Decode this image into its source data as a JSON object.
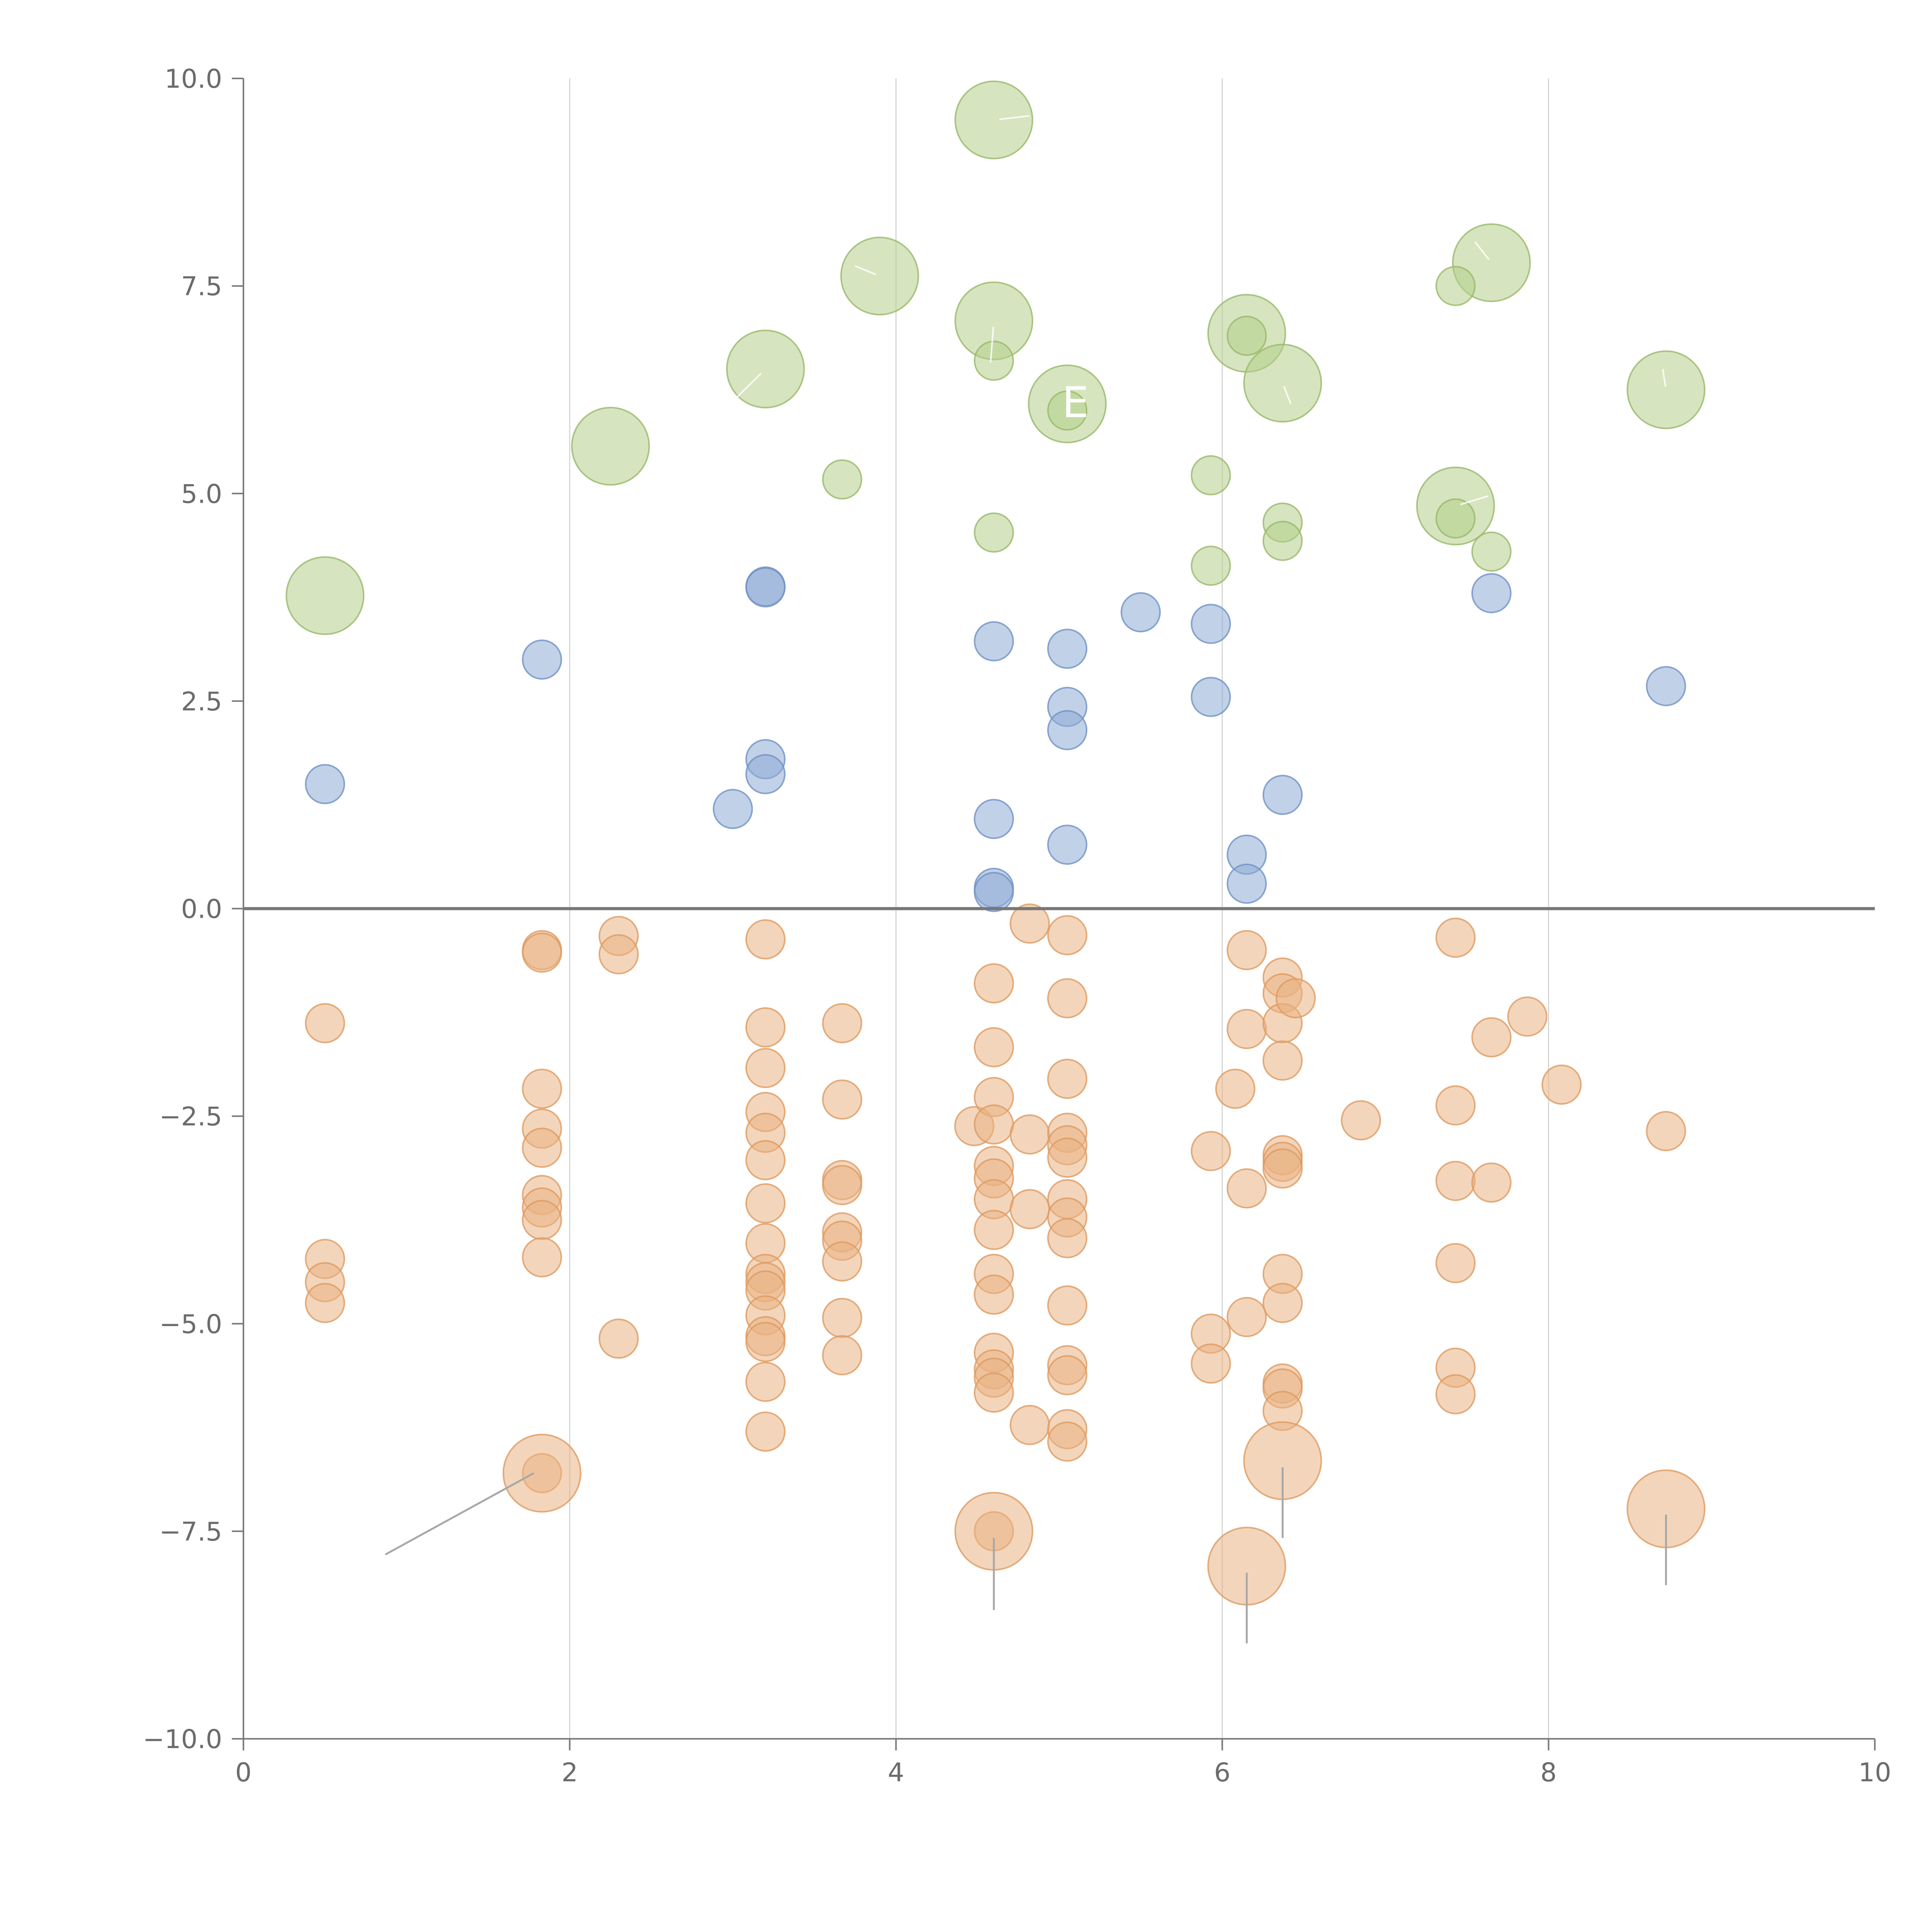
{
  "chart_data": {
    "type": "scatter",
    "title": "",
    "xlabel": "",
    "ylabel": "",
    "xlim": [
      0,
      10
    ],
    "ylim": [
      -10,
      10
    ],
    "x_ticks": [
      0,
      2,
      4,
      6,
      8,
      10
    ],
    "x_tick_labels": [
      "0",
      "2",
      "4",
      "6",
      "8",
      "10"
    ],
    "y_ticks": [
      10,
      7.5,
      5,
      2.5,
      0,
      -2.5,
      -5,
      -7.5,
      -10
    ],
    "y_tick_labels": [
      "10.0",
      "7.5",
      "5.0",
      "2.5",
      "0.0",
      "−2.5",
      "−5.0",
      "−7.5",
      "−10.0"
    ],
    "x_grid": [
      2,
      4,
      6,
      8
    ],
    "reference_line_y": 0,
    "overlay_text": [
      "E"
    ],
    "series": [
      {
        "name": "large-green",
        "color": "#b5d08a",
        "edge": "#98b86a",
        "radius_scale": 2.0,
        "points": [
          [
            0.5,
            3.77
          ],
          [
            2.25,
            5.57
          ],
          [
            3.2,
            6.5
          ],
          [
            3.9,
            7.62
          ],
          [
            4.6,
            9.5
          ],
          [
            4.6,
            7.08
          ],
          [
            5.05,
            6.08
          ],
          [
            6.15,
            6.93
          ],
          [
            6.37,
            6.33
          ],
          [
            7.43,
            4.85
          ],
          [
            7.65,
            7.78
          ],
          [
            8.72,
            6.25
          ]
        ],
        "labels": [
          {
            "index": 2,
            "dx": -0.18,
            "dy": -0.35
          },
          {
            "index": 3,
            "dx": -0.15,
            "dy": 0.12
          },
          {
            "index": 4,
            "dx": 0.22,
            "dy": 0.05
          },
          {
            "index": 5,
            "dx": -0.02,
            "dy": -0.5
          },
          {
            "index": 7,
            "dx": 0.0,
            "dy": 0.0
          },
          {
            "index": 8,
            "dx": 0.05,
            "dy": -0.25
          },
          {
            "index": 9,
            "dx": 0.2,
            "dy": 0.12
          },
          {
            "index": 10,
            "dx": -0.1,
            "dy": 0.25
          },
          {
            "index": 11,
            "dx": -0.02,
            "dy": 0.25
          }
        ]
      },
      {
        "name": "small-green",
        "color": "#b5d08a",
        "edge": "#98b86a",
        "radius_scale": 1.0,
        "points": [
          [
            3.67,
            5.17
          ],
          [
            4.6,
            6.6
          ],
          [
            4.6,
            4.53
          ],
          [
            5.05,
            6.0
          ],
          [
            5.93,
            5.22
          ],
          [
            5.93,
            4.13
          ],
          [
            6.15,
            6.9
          ],
          [
            6.37,
            4.65
          ],
          [
            6.37,
            4.43
          ],
          [
            7.43,
            7.5
          ],
          [
            7.43,
            4.7
          ],
          [
            7.65,
            4.3
          ]
        ]
      },
      {
        "name": "blue",
        "color": "#8eabd6",
        "edge": "#6f91c4",
        "radius_scale": 1.0,
        "points": [
          [
            0.5,
            1.5
          ],
          [
            1.83,
            3.0
          ],
          [
            3.0,
            1.2
          ],
          [
            3.2,
            3.88
          ],
          [
            3.2,
            3.87
          ],
          [
            3.2,
            1.8
          ],
          [
            3.2,
            1.62
          ],
          [
            4.6,
            3.22
          ],
          [
            4.6,
            1.08
          ],
          [
            4.6,
            0.25
          ],
          [
            4.6,
            0.2
          ],
          [
            5.05,
            3.13
          ],
          [
            5.05,
            2.43
          ],
          [
            5.05,
            2.15
          ],
          [
            5.05,
            0.77
          ],
          [
            5.5,
            3.57
          ],
          [
            5.93,
            3.43
          ],
          [
            5.93,
            2.55
          ],
          [
            6.15,
            0.65
          ],
          [
            6.15,
            0.3
          ],
          [
            6.37,
            1.37
          ],
          [
            7.65,
            3.8
          ],
          [
            8.72,
            2.68
          ]
        ]
      },
      {
        "name": "orange",
        "color": "#eab384",
        "edge": "#dd9a60",
        "radius_scale": 1.0,
        "points": [
          [
            0.5,
            -1.38
          ],
          [
            0.5,
            -4.22
          ],
          [
            0.5,
            -4.5
          ],
          [
            0.5,
            -4.75
          ],
          [
            1.83,
            -0.5
          ],
          [
            1.83,
            -0.53
          ],
          [
            1.83,
            -2.17
          ],
          [
            1.83,
            -2.65
          ],
          [
            1.83,
            -2.88
          ],
          [
            1.83,
            -3.45
          ],
          [
            1.83,
            -3.6
          ],
          [
            1.83,
            -3.75
          ],
          [
            1.83,
            -4.2
          ],
          [
            1.83,
            -6.8
          ],
          [
            2.3,
            -0.33
          ],
          [
            2.3,
            -0.55
          ],
          [
            2.3,
            -5.18
          ],
          [
            3.2,
            -0.37
          ],
          [
            3.2,
            -1.43
          ],
          [
            3.2,
            -1.92
          ],
          [
            3.2,
            -2.45
          ],
          [
            3.2,
            -2.7
          ],
          [
            3.2,
            -3.03
          ],
          [
            3.2,
            -3.55
          ],
          [
            3.2,
            -4.03
          ],
          [
            3.2,
            -4.4
          ],
          [
            3.2,
            -4.5
          ],
          [
            3.2,
            -4.6
          ],
          [
            3.2,
            -4.9
          ],
          [
            3.2,
            -5.15
          ],
          [
            3.2,
            -5.22
          ],
          [
            3.2,
            -5.7
          ],
          [
            3.2,
            -6.3
          ],
          [
            3.67,
            -1.38
          ],
          [
            3.67,
            -2.3
          ],
          [
            3.67,
            -3.27
          ],
          [
            3.67,
            -3.33
          ],
          [
            3.67,
            -3.9
          ],
          [
            3.67,
            -4.0
          ],
          [
            3.67,
            -4.25
          ],
          [
            3.67,
            -4.93
          ],
          [
            3.67,
            -5.38
          ],
          [
            4.48,
            -2.62
          ],
          [
            4.6,
            -0.9
          ],
          [
            4.6,
            -1.67
          ],
          [
            4.6,
            -2.27
          ],
          [
            4.6,
            -2.6
          ],
          [
            4.6,
            -3.1
          ],
          [
            4.6,
            -3.25
          ],
          [
            4.6,
            -3.5
          ],
          [
            4.6,
            -3.87
          ],
          [
            4.6,
            -4.4
          ],
          [
            4.6,
            -4.65
          ],
          [
            4.6,
            -5.35
          ],
          [
            4.6,
            -5.55
          ],
          [
            4.6,
            -5.65
          ],
          [
            4.6,
            -5.83
          ],
          [
            4.6,
            -7.5
          ],
          [
            4.82,
            -0.18
          ],
          [
            4.82,
            -2.72
          ],
          [
            4.82,
            -3.62
          ],
          [
            4.82,
            -6.22
          ],
          [
            5.05,
            -0.32
          ],
          [
            5.05,
            -1.08
          ],
          [
            5.05,
            -2.05
          ],
          [
            5.05,
            -2.7
          ],
          [
            5.05,
            -2.85
          ],
          [
            5.05,
            -3.0
          ],
          [
            5.05,
            -3.5
          ],
          [
            5.05,
            -3.72
          ],
          [
            5.05,
            -3.97
          ],
          [
            5.05,
            -4.78
          ],
          [
            5.05,
            -5.5
          ],
          [
            5.05,
            -5.62
          ],
          [
            5.05,
            -6.27
          ],
          [
            5.05,
            -6.42
          ],
          [
            5.93,
            -2.92
          ],
          [
            5.93,
            -5.12
          ],
          [
            5.93,
            -5.48
          ],
          [
            6.08,
            -2.17
          ],
          [
            6.15,
            -0.5
          ],
          [
            6.15,
            -1.45
          ],
          [
            6.15,
            -3.37
          ],
          [
            6.15,
            -4.92
          ],
          [
            6.37,
            -0.83
          ],
          [
            6.37,
            -1.02
          ],
          [
            6.37,
            -1.38
          ],
          [
            6.37,
            -1.83
          ],
          [
            6.37,
            -2.97
          ],
          [
            6.37,
            -3.05
          ],
          [
            6.37,
            -3.13
          ],
          [
            6.37,
            -4.4
          ],
          [
            6.37,
            -4.75
          ],
          [
            6.37,
            -5.72
          ],
          [
            6.37,
            -5.78
          ],
          [
            6.37,
            -6.05
          ],
          [
            6.45,
            -1.08
          ],
          [
            6.85,
            -2.55
          ],
          [
            7.43,
            -0.35
          ],
          [
            7.43,
            -2.37
          ],
          [
            7.43,
            -3.28
          ],
          [
            7.43,
            -4.27
          ],
          [
            7.43,
            -5.53
          ],
          [
            7.43,
            -5.85
          ],
          [
            7.65,
            -1.55
          ],
          [
            7.65,
            -3.3
          ],
          [
            7.87,
            -1.3
          ],
          [
            8.08,
            -2.12
          ],
          [
            8.72,
            -2.68
          ]
        ]
      },
      {
        "name": "large-orange",
        "color": "#eab384",
        "edge": "#dd9a60",
        "radius_scale": 2.0,
        "points": [
          [
            1.83,
            -6.8
          ],
          [
            4.6,
            -7.5
          ],
          [
            6.15,
            -7.92
          ],
          [
            6.37,
            -6.65
          ],
          [
            8.72,
            -7.23
          ]
        ],
        "leaders": [
          {
            "from": [
              1.78,
              -6.8
            ],
            "to": [
              0.87,
              -7.78
            ]
          },
          {
            "from": [
              4.6,
              -7.58
            ],
            "to": [
              4.6,
              -8.45
            ]
          },
          {
            "from": [
              6.15,
              -8.0
            ],
            "to": [
              6.15,
              -8.85
            ]
          },
          {
            "from": [
              6.37,
              -6.73
            ],
            "to": [
              6.37,
              -7.58
            ]
          },
          {
            "from": [
              8.72,
              -7.3
            ],
            "to": [
              8.72,
              -8.15
            ]
          }
        ]
      }
    ]
  }
}
